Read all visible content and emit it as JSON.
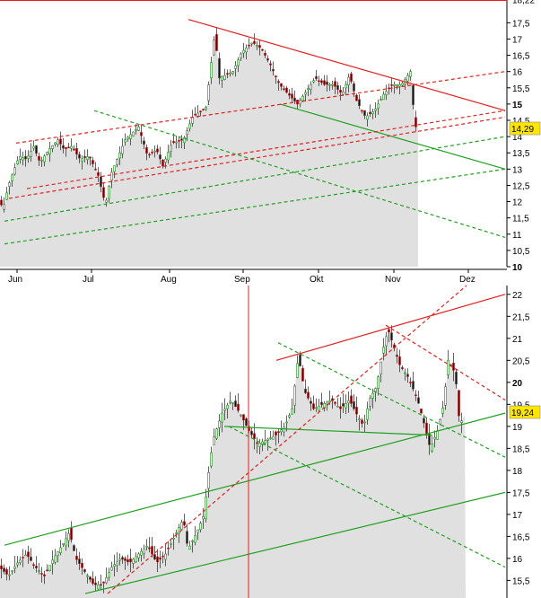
{
  "chart_data": [
    {
      "type": "candlestick",
      "title": "",
      "xlabel": "",
      "ylabel": "",
      "months": [
        "Jun",
        "Jul",
        "Aug",
        "Sep",
        "Okt",
        "Nov",
        "Dez"
      ],
      "ylim": [
        10,
        18.2
      ],
      "yticks": [
        "10",
        "10,5",
        "11",
        "11,5",
        "12",
        "12,5",
        "13",
        "13,5",
        "14",
        "14,5",
        "15",
        "15,5",
        "16",
        "16,5",
        "17",
        "17,5",
        "18,22"
      ],
      "y_tick_values": [
        10,
        10.5,
        11,
        11.5,
        12,
        12.5,
        13,
        13.5,
        14,
        14.5,
        15,
        15.5,
        16,
        16.5,
        17,
        17.5,
        18.22
      ],
      "bold_ticks": [
        "10",
        "15"
      ],
      "last_price": "14,29",
      "price_path": [
        [
          0,
          12.0
        ],
        [
          4,
          11.8
        ],
        [
          10,
          12.5
        ],
        [
          15,
          12.9
        ],
        [
          22,
          13.4
        ],
        [
          30,
          13.3
        ],
        [
          38,
          13.7
        ],
        [
          45,
          13.2
        ],
        [
          55,
          13.6
        ],
        [
          65,
          13.9
        ],
        [
          72,
          13.6
        ],
        [
          80,
          13.7
        ],
        [
          90,
          13.3
        ],
        [
          100,
          13.4
        ],
        [
          110,
          12.8
        ],
        [
          118,
          11.9
        ],
        [
          125,
          12.9
        ],
        [
          140,
          13.9
        ],
        [
          155,
          14.3
        ],
        [
          165,
          13.4
        ],
        [
          175,
          13.6
        ],
        [
          182,
          13.1
        ],
        [
          192,
          13.8
        ],
        [
          205,
          13.9
        ],
        [
          215,
          14.6
        ],
        [
          230,
          14.9
        ],
        [
          240,
          17.2
        ],
        [
          245,
          15.8
        ],
        [
          260,
          16.0
        ],
        [
          270,
          16.6
        ],
        [
          282,
          16.9
        ],
        [
          292,
          16.7
        ],
        [
          302,
          16.2
        ],
        [
          312,
          15.6
        ],
        [
          322,
          15.3
        ],
        [
          332,
          15.0
        ],
        [
          342,
          15.4
        ],
        [
          352,
          15.8
        ],
        [
          362,
          15.6
        ],
        [
          372,
          15.6
        ],
        [
          382,
          15.3
        ],
        [
          390,
          15.9
        ],
        [
          398,
          15.1
        ],
        [
          408,
          14.6
        ],
        [
          418,
          14.8
        ],
        [
          428,
          15.3
        ],
        [
          438,
          15.6
        ],
        [
          448,
          15.6
        ],
        [
          458,
          16.0
        ],
        [
          463,
          14.3
        ]
      ],
      "trendlines": [
        {
          "style": "solid",
          "color": "#e32020",
          "points": [
            [
              210,
              17.6
            ],
            [
              563,
              14.8
            ]
          ]
        },
        {
          "style": "solid",
          "color": "#20a020",
          "points": [
            [
              312,
              15.0
            ],
            [
              563,
              13.0
            ]
          ]
        },
        {
          "style": "dashed",
          "color": "#e32020",
          "points": [
            [
              18,
              13.8
            ],
            [
              563,
              16.0
            ]
          ]
        },
        {
          "style": "dashed",
          "color": "#e32020",
          "points": [
            [
              30,
              12.4
            ],
            [
              563,
              14.8
            ]
          ]
        },
        {
          "style": "dashed",
          "color": "#e32020",
          "points": [
            [
              10,
              12.1
            ],
            [
              563,
              14.6
            ]
          ]
        },
        {
          "style": "dashed",
          "color": "#20a020",
          "points": [
            [
              105,
              14.8
            ],
            [
              563,
              10.9
            ]
          ]
        },
        {
          "style": "dashed",
          "color": "#20a020",
          "points": [
            [
              5,
              11.4
            ],
            [
              563,
              14.0
            ]
          ]
        },
        {
          "style": "dashed",
          "color": "#20a020",
          "points": [
            [
              5,
              10.7
            ],
            [
              563,
              13.0
            ]
          ]
        }
      ]
    },
    {
      "type": "candlestick",
      "title": "",
      "xlabel": "",
      "ylabel": "",
      "ylim": [
        15.1,
        22.2
      ],
      "yticks": [
        "15",
        "15,5",
        "16",
        "16,5",
        "17",
        "17,5",
        "18",
        "18,5",
        "19",
        "19,5",
        "20",
        "20,5",
        "21",
        "21,5",
        "22"
      ],
      "y_tick_values": [
        15,
        15.5,
        16,
        16.5,
        17,
        17.5,
        18,
        18.5,
        19,
        19.5,
        20,
        20.5,
        21,
        21.5,
        22
      ],
      "bold_ticks": [
        "15",
        "20"
      ],
      "last_price": "19,24",
      "price_path": [
        [
          0,
          15.8
        ],
        [
          10,
          15.6
        ],
        [
          20,
          15.9
        ],
        [
          30,
          16.1
        ],
        [
          40,
          15.8
        ],
        [
          50,
          15.6
        ],
        [
          60,
          16.0
        ],
        [
          70,
          16.3
        ],
        [
          78,
          16.6
        ],
        [
          85,
          16.0
        ],
        [
          95,
          15.7
        ],
        [
          105,
          15.4
        ],
        [
          115,
          15.4
        ],
        [
          125,
          15.8
        ],
        [
          135,
          16.0
        ],
        [
          145,
          15.9
        ],
        [
          155,
          16.1
        ],
        [
          165,
          16.3
        ],
        [
          175,
          15.9
        ],
        [
          185,
          16.1
        ],
        [
          195,
          16.5
        ],
        [
          205,
          16.9
        ],
        [
          210,
          16.2
        ],
        [
          220,
          16.6
        ],
        [
          228,
          17.0
        ],
        [
          232,
          17.8
        ],
        [
          238,
          18.7
        ],
        [
          248,
          19.3
        ],
        [
          258,
          19.6
        ],
        [
          268,
          19.3
        ],
        [
          278,
          18.9
        ],
        [
          288,
          18.6
        ],
        [
          298,
          18.7
        ],
        [
          308,
          18.8
        ],
        [
          318,
          19.0
        ],
        [
          326,
          19.4
        ],
        [
          333,
          20.6
        ],
        [
          340,
          19.8
        ],
        [
          350,
          19.4
        ],
        [
          360,
          19.5
        ],
        [
          370,
          19.6
        ],
        [
          380,
          19.4
        ],
        [
          390,
          19.6
        ],
        [
          400,
          19.2
        ],
        [
          406,
          19.0
        ],
        [
          412,
          19.6
        ],
        [
          420,
          19.9
        ],
        [
          428,
          20.8
        ],
        [
          433,
          21.2
        ],
        [
          438,
          20.9
        ],
        [
          446,
          20.4
        ],
        [
          456,
          20.1
        ],
        [
          466,
          19.6
        ],
        [
          474,
          19.0
        ],
        [
          480,
          18.5
        ],
        [
          488,
          18.9
        ],
        [
          495,
          19.5
        ],
        [
          500,
          20.5
        ],
        [
          508,
          20.2
        ],
        [
          513,
          19.0
        ],
        [
          517,
          19.25
        ]
      ],
      "trendlines": [
        {
          "style": "solid",
          "color": "#e32020",
          "points": [
            [
              308,
              20.5
            ],
            [
              563,
              22.0
            ]
          ]
        },
        {
          "style": "solid",
          "color": "#20a020",
          "points": [
            [
              5,
              16.3
            ],
            [
              563,
              19.3
            ]
          ]
        },
        {
          "style": "solid",
          "color": "#20a020",
          "points": [
            [
              95,
              15.2
            ],
            [
              563,
              17.5
            ]
          ]
        },
        {
          "style": "solid",
          "color": "#20a020",
          "points": [
            [
              250,
              19.0
            ],
            [
              482,
              18.8
            ]
          ]
        },
        {
          "style": "dashed",
          "color": "#e32020",
          "points": [
            [
              120,
              15.2
            ],
            [
              520,
              22.2
            ]
          ]
        },
        {
          "style": "dashed",
          "color": "#e32020",
          "points": [
            [
              430,
              21.3
            ],
            [
              563,
              19.6
            ]
          ]
        },
        {
          "style": "dashed",
          "color": "#20a020",
          "points": [
            [
              310,
              20.9
            ],
            [
              563,
              18.3
            ]
          ]
        },
        {
          "style": "dashed",
          "color": "#20a020",
          "points": [
            [
              255,
              19.0
            ],
            [
              563,
              15.8
            ]
          ]
        }
      ]
    }
  ]
}
